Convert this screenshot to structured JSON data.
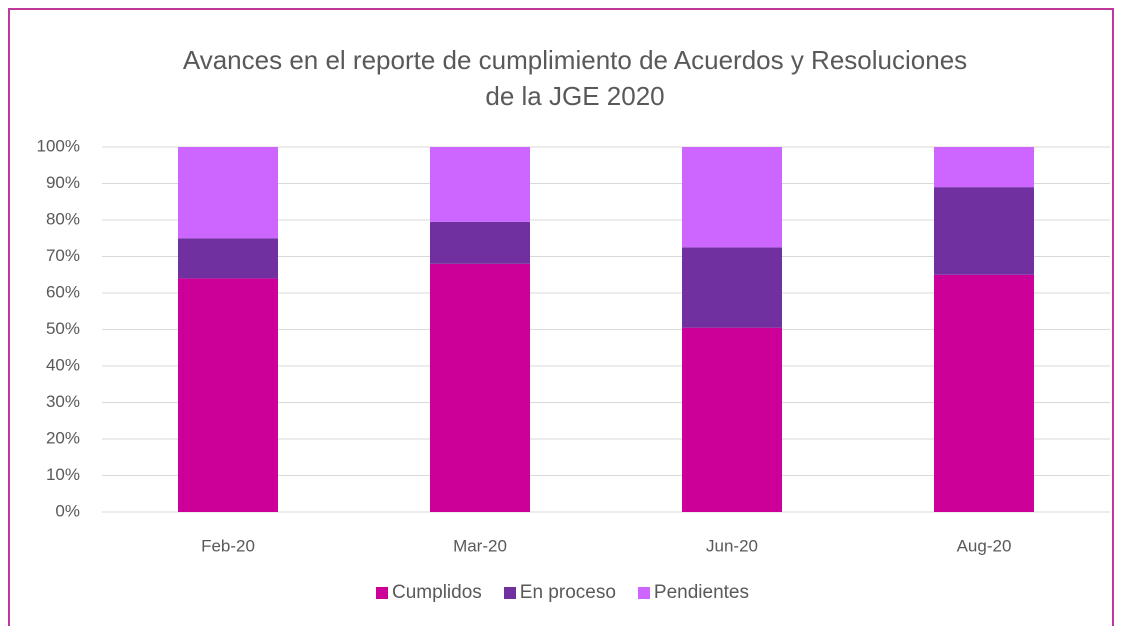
{
  "chart_data": {
    "type": "bar",
    "stacked": true,
    "title": "Avances en el reporte de cumplimiento de Acuerdos y Resoluciones de la JGE 2020",
    "categories": [
      "Feb-20",
      "Mar-20",
      "Jun-20",
      "Aug-20"
    ],
    "series": [
      {
        "name": "Cumplidos",
        "color": "#cc0099",
        "values": [
          64,
          68,
          50.5,
          65
        ]
      },
      {
        "name": "En proceso",
        "color": "#7030a0",
        "values": [
          11,
          11.5,
          22,
          24
        ]
      },
      {
        "name": "Pendientes",
        "color": "#cc66ff",
        "values": [
          25,
          20.5,
          27.5,
          11
        ]
      }
    ],
    "ylim": [
      0,
      100
    ],
    "yticks": [
      {
        "value": 0,
        "label": "0%"
      },
      {
        "value": 10,
        "label": "10%"
      },
      {
        "value": 20,
        "label": "20%"
      },
      {
        "value": 30,
        "label": "30%"
      },
      {
        "value": 40,
        "label": "40%"
      },
      {
        "value": 50,
        "label": "50%"
      },
      {
        "value": 60,
        "label": "60%"
      },
      {
        "value": 70,
        "label": "70%"
      },
      {
        "value": 80,
        "label": "80%"
      },
      {
        "value": 90,
        "label": "90%"
      },
      {
        "value": 100,
        "label": "100%"
      }
    ],
    "grid": true,
    "legend": "bottom"
  }
}
